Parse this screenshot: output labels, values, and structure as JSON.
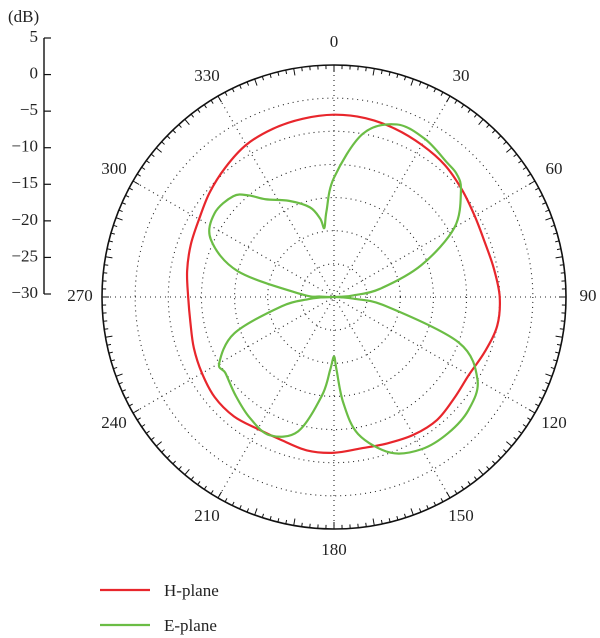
{
  "chart_data": {
    "type": "polar-line",
    "unit_label": "(dB)",
    "radial_axis": {
      "ticks": [
        5,
        0,
        -5,
        -10,
        -15,
        -20,
        -25,
        -30
      ],
      "range": [
        -30,
        5
      ],
      "grid_circles": [
        -25,
        -20,
        -15,
        -10,
        -5,
        0
      ],
      "grid_style": "dotted"
    },
    "angular_axis": {
      "tick_labels": [
        "0",
        "30",
        "60",
        "90",
        "120",
        "150",
        "180",
        "210",
        "240",
        "270",
        "300",
        "330"
      ],
      "tick_angles": [
        0,
        30,
        60,
        90,
        120,
        150,
        180,
        210,
        240,
        270,
        300,
        330
      ],
      "direction": "clockwise",
      "zero_at": "top",
      "grid_style": "dotted"
    },
    "legend_position": "bottom-left",
    "series": [
      {
        "name": "H-plane",
        "color": "#e8262c",
        "angles": [
          0,
          10,
          20,
          30,
          40,
          50,
          60,
          70,
          80,
          90,
          100,
          110,
          120,
          130,
          140,
          150,
          160,
          170,
          180,
          190,
          200,
          210,
          220,
          230,
          240,
          250,
          260,
          270,
          280,
          290,
          300,
          310,
          320,
          330,
          340,
          350,
          360
        ],
        "values": [
          -2.5,
          -2.6,
          -3.0,
          -3.5,
          -4.0,
          -4.8,
          -5.5,
          -5.8,
          -5.5,
          -5.0,
          -5.0,
          -5.8,
          -6.5,
          -6.3,
          -5.8,
          -6.0,
          -6.5,
          -6.8,
          -6.5,
          -6.5,
          -7.0,
          -7.0,
          -6.5,
          -6.5,
          -7.0,
          -7.5,
          -8.0,
          -8.0,
          -7.5,
          -7.0,
          -6.5,
          -5.5,
          -4.5,
          -3.5,
          -3.0,
          -2.7,
          -2.5
        ]
      },
      {
        "name": "E-plane",
        "color": "#6bbd45",
        "angles": [
          0,
          10,
          20,
          30,
          40,
          45,
          50,
          60,
          70,
          80,
          85,
          88,
          90,
          92,
          95,
          100,
          110,
          120,
          130,
          140,
          150,
          160,
          170,
          175,
          178,
          180,
          183,
          187,
          195,
          205,
          215,
          225,
          235,
          240,
          250,
          260,
          265,
          268,
          270,
          272,
          275,
          285,
          295,
          305,
          315,
          320,
          325,
          335,
          345,
          350,
          352,
          355,
          360
        ],
        "values": [
          -12,
          -5,
          -2.3,
          -2.5,
          -3.5,
          -3.8,
          -5,
          -9,
          -16,
          -23,
          -27,
          -29,
          -30,
          -29,
          -27,
          -22,
          -10,
          -5,
          -3.5,
          -3.2,
          -3.5,
          -5,
          -9,
          -14,
          -19,
          -21,
          -19,
          -15,
          -9,
          -7,
          -7.8,
          -9,
          -10,
          -10,
          -14,
          -22,
          -26,
          -28,
          -30,
          -28,
          -25,
          -15,
          -9.5,
          -8,
          -8.5,
          -10,
          -12,
          -14,
          -16,
          -18,
          -19.5,
          -17,
          -12
        ]
      }
    ]
  },
  "legend": [
    {
      "label": "H-plane",
      "color": "#e8262c"
    },
    {
      "label": "E-plane",
      "color": "#6bbd45"
    }
  ]
}
